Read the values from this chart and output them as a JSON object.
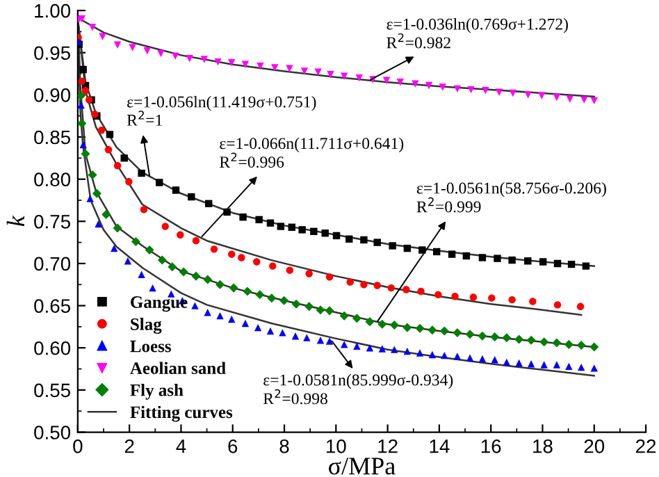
{
  "chart_data": {
    "type": "scatter",
    "xlabel": "σ/MPa",
    "ylabel": "k",
    "xlim": [
      0,
      22
    ],
    "xticks": [
      0,
      2,
      4,
      6,
      8,
      10,
      12,
      14,
      16,
      18,
      20,
      22
    ],
    "ylim": [
      0.5,
      1.0
    ],
    "yticks": [
      {
        "value": 0.5,
        "label": "0.50"
      },
      {
        "value": 0.55,
        "label": "0.55"
      },
      {
        "value": 0.6,
        "label": "0.60"
      },
      {
        "value": 0.65,
        "label": "0.65"
      },
      {
        "value": 0.7,
        "label": "0.70"
      },
      {
        "value": 0.75,
        "label": "0.75"
      },
      {
        "value": 0.8,
        "label": "0.80"
      },
      {
        "value": 0.85,
        "label": "0.85"
      },
      {
        "value": 0.9,
        "label": "0.90"
      },
      {
        "value": 0.95,
        "label": "0.95"
      },
      {
        "value": 1.0,
        "label": "1.00"
      }
    ],
    "grid": false,
    "legend": "bottom left",
    "series": [
      {
        "name": "Gangue",
        "color": "#000000",
        "marker": "square",
        "x": [
          0.05,
          0.21,
          0.3,
          0.53,
          0.74,
          1.24,
          1.8,
          2.47,
          3.16,
          3.8,
          4.4,
          5.07,
          5.78,
          6.4,
          7.02,
          7.46,
          7.86,
          8.29,
          8.69,
          9.14,
          9.58,
          10.02,
          10.51,
          11.08,
          11.6,
          12.19,
          12.76,
          13.34,
          13.9,
          14.49,
          15.05,
          15.67,
          16.25,
          16.82,
          17.43,
          18.02,
          18.58,
          19.12,
          19.68
        ],
        "values": [
          0.96,
          0.93,
          0.911,
          0.894,
          0.875,
          0.853,
          0.825,
          0.807,
          0.796,
          0.787,
          0.779,
          0.771,
          0.761,
          0.755,
          0.752,
          0.748,
          0.744,
          0.743,
          0.74,
          0.738,
          0.736,
          0.733,
          0.729,
          0.728,
          0.725,
          0.721,
          0.718,
          0.716,
          0.714,
          0.711,
          0.709,
          0.707,
          0.706,
          0.704,
          0.703,
          0.702,
          0.7,
          0.699,
          0.697
        ]
      },
      {
        "name": "Slag",
        "color": "#ff0000",
        "marker": "circle",
        "x": [
          0.02,
          0.16,
          0.3,
          0.44,
          0.66,
          0.92,
          1.19,
          1.54,
          1.98,
          2.56,
          3.39,
          3.97,
          4.58,
          5.28,
          5.96,
          6.34,
          6.93,
          7.55,
          8.21,
          8.96,
          9.75,
          10.55,
          11.08,
          11.6,
          12.14,
          12.72,
          13.29,
          13.96,
          14.61,
          15.32,
          16.03,
          16.82,
          17.62,
          18.58,
          19.47
        ],
        "values": [
          0.968,
          0.916,
          0.905,
          0.894,
          0.877,
          0.858,
          0.835,
          0.816,
          0.797,
          0.764,
          0.744,
          0.734,
          0.727,
          0.717,
          0.711,
          0.707,
          0.702,
          0.697,
          0.692,
          0.688,
          0.684,
          0.678,
          0.675,
          0.674,
          0.671,
          0.669,
          0.667,
          0.663,
          0.661,
          0.66,
          0.659,
          0.657,
          0.655,
          0.651,
          0.649
        ]
      },
      {
        "name": "Loess",
        "color": "#0000ff",
        "marker": "triangle",
        "x": [
          0.04,
          0.13,
          0.21,
          0.48,
          0.8,
          1.41,
          1.94,
          2.47,
          2.9,
          3.62,
          4.05,
          4.54,
          5.03,
          5.51,
          5.96,
          6.49,
          6.98,
          7.46,
          7.93,
          8.43,
          8.87,
          9.4,
          9.75,
          10.32,
          10.81,
          11.31,
          11.79,
          12.26,
          12.76,
          13.25,
          13.73,
          14.2,
          14.7,
          15.19,
          15.67,
          16.15,
          16.61,
          17.09,
          17.56,
          18.06,
          18.55,
          19.02,
          19.5,
          20.0
        ],
        "values": [
          0.963,
          0.888,
          0.841,
          0.777,
          0.747,
          0.718,
          0.703,
          0.687,
          0.671,
          0.664,
          0.656,
          0.65,
          0.642,
          0.638,
          0.634,
          0.629,
          0.624,
          0.62,
          0.618,
          0.614,
          0.612,
          0.609,
          0.608,
          0.604,
          0.602,
          0.6,
          0.599,
          0.598,
          0.596,
          0.594,
          0.592,
          0.591,
          0.59,
          0.588,
          0.587,
          0.586,
          0.583,
          0.582,
          0.581,
          0.58,
          0.58,
          0.578,
          0.577,
          0.576
        ]
      },
      {
        "name": "Aeolian sand",
        "color": "#ff00ff",
        "marker": "triangle-down",
        "x": [
          0.04,
          0.16,
          0.57,
          0.96,
          1.54,
          2.12,
          2.69,
          3.22,
          3.78,
          4.33,
          4.9,
          5.43,
          5.96,
          6.49,
          7.07,
          7.63,
          8.2,
          8.78,
          9.31,
          9.79,
          10.32,
          10.9,
          11.43,
          11.96,
          12.49,
          13.07,
          13.6,
          14.13,
          14.7,
          15.23,
          15.79,
          16.32,
          16.85,
          17.44,
          17.97,
          18.55,
          19.06,
          19.61,
          20.0
        ],
        "values": [
          0.989,
          0.99,
          0.98,
          0.969,
          0.959,
          0.956,
          0.952,
          0.949,
          0.946,
          0.943,
          0.942,
          0.939,
          0.938,
          0.936,
          0.934,
          0.932,
          0.931,
          0.928,
          0.927,
          0.924,
          0.922,
          0.92,
          0.918,
          0.917,
          0.915,
          0.913,
          0.911,
          0.909,
          0.907,
          0.906,
          0.905,
          0.903,
          0.902,
          0.9,
          0.899,
          0.897,
          0.895,
          0.894,
          0.893
        ]
      },
      {
        "name": "Fly ash",
        "color": "#008000",
        "marker": "diamond",
        "x": [
          0.13,
          0.16,
          0.3,
          0.57,
          0.74,
          1.1,
          1.54,
          2.25,
          2.78,
          3.27,
          3.66,
          4.1,
          4.58,
          5.03,
          5.51,
          6.04,
          6.57,
          7.05,
          7.51,
          7.99,
          8.46,
          8.96,
          9.4,
          9.75,
          10.32,
          10.81,
          11.31,
          11.79,
          12.26,
          12.76,
          13.25,
          13.73,
          14.2,
          14.7,
          15.19,
          15.67,
          16.15,
          16.61,
          17.09,
          17.56,
          18.06,
          18.55,
          19.02,
          19.5,
          20.0
        ],
        "values": [
          0.899,
          0.866,
          0.83,
          0.805,
          0.783,
          0.758,
          0.742,
          0.726,
          0.716,
          0.704,
          0.696,
          0.69,
          0.685,
          0.681,
          0.675,
          0.671,
          0.667,
          0.663,
          0.659,
          0.656,
          0.652,
          0.649,
          0.645,
          0.644,
          0.638,
          0.635,
          0.631,
          0.628,
          0.627,
          0.624,
          0.623,
          0.621,
          0.62,
          0.618,
          0.616,
          0.614,
          0.613,
          0.612,
          0.61,
          0.609,
          0.607,
          0.606,
          0.604,
          0.603,
          0.601
        ]
      },
      {
        "type": "line",
        "name": "Fitting curves",
        "color": "#333333",
        "x": [
          0.02,
          0.3,
          0.7,
          1.5,
          2.5,
          4,
          6,
          8,
          10,
          12,
          14,
          16,
          18,
          20
        ],
        "values": [
          0.985,
          0.915,
          0.878,
          0.838,
          0.808,
          0.783,
          0.76,
          0.745,
          0.734,
          0.723,
          0.715,
          0.708,
          0.702,
          0.697
        ]
      },
      {
        "type": "line",
        "color": "#333333",
        "x": [
          0.02,
          0.3,
          0.7,
          1.5,
          2.5,
          4,
          5,
          7.5,
          10,
          12,
          14,
          16,
          18,
          19.5
        ],
        "values": [
          0.985,
          0.905,
          0.862,
          0.818,
          0.77,
          0.742,
          0.727,
          0.704,
          0.685,
          0.672,
          0.661,
          0.652,
          0.645,
          0.639
        ]
      },
      {
        "type": "line",
        "color": "#333333",
        "x": [
          0.02,
          0.05,
          0.1,
          0.2,
          0.5,
          1,
          1.5,
          2.5,
          4,
          5,
          7.5,
          10,
          12,
          14,
          16,
          18,
          20
        ],
        "values": [
          0.98,
          0.93,
          0.88,
          0.84,
          0.775,
          0.74,
          0.72,
          0.695,
          0.665,
          0.651,
          0.629,
          0.611,
          0.598,
          0.589,
          0.581,
          0.574,
          0.567
        ]
      },
      {
        "type": "line",
        "color": "#333333",
        "x": [
          0.02,
          1,
          2,
          4,
          6,
          8,
          10,
          12,
          14,
          16,
          18,
          20
        ],
        "values": [
          0.991,
          0.974,
          0.963,
          0.947,
          0.936,
          0.928,
          0.921,
          0.915,
          0.91,
          0.906,
          0.902,
          0.898
        ]
      },
      {
        "type": "line",
        "color": "#333333",
        "x": [
          0.02,
          0.1,
          0.3,
          0.7,
          1.5,
          2.5,
          4,
          6,
          8,
          10,
          12,
          14,
          16,
          18,
          20
        ],
        "values": [
          0.98,
          0.91,
          0.83,
          0.786,
          0.744,
          0.721,
          0.691,
          0.671,
          0.656,
          0.642,
          0.628,
          0.62,
          0.613,
          0.607,
          0.601
        ]
      }
    ],
    "annotations": [
      {
        "text": "ε=1-0.036ln(0.769σ+1.272)\nR$^{2}$=0.982",
        "x": 11.34,
        "y": 0.918
      },
      {
        "text": "ε=1-0.056ln(11.419σ+0.751)\nR$^{2}$=1",
        "x": 2.78,
        "y": 0.804
      },
      {
        "text": "ε=1-0.066n(11.711σ+0.641)\nR$^{2}$=0.996",
        "x": 4.81,
        "y": 0.732
      },
      {
        "text": "ε=1-0.0561n(58.756σ-0.206)\nR$^{2}$=0.999",
        "x": 11.6,
        "y": 0.631
      },
      {
        "text": "ε=1-0.0581n(85.999σ-0.934)\nR$^{2}$=0.998",
        "x": 9.84,
        "y": 0.608
      }
    ]
  }
}
